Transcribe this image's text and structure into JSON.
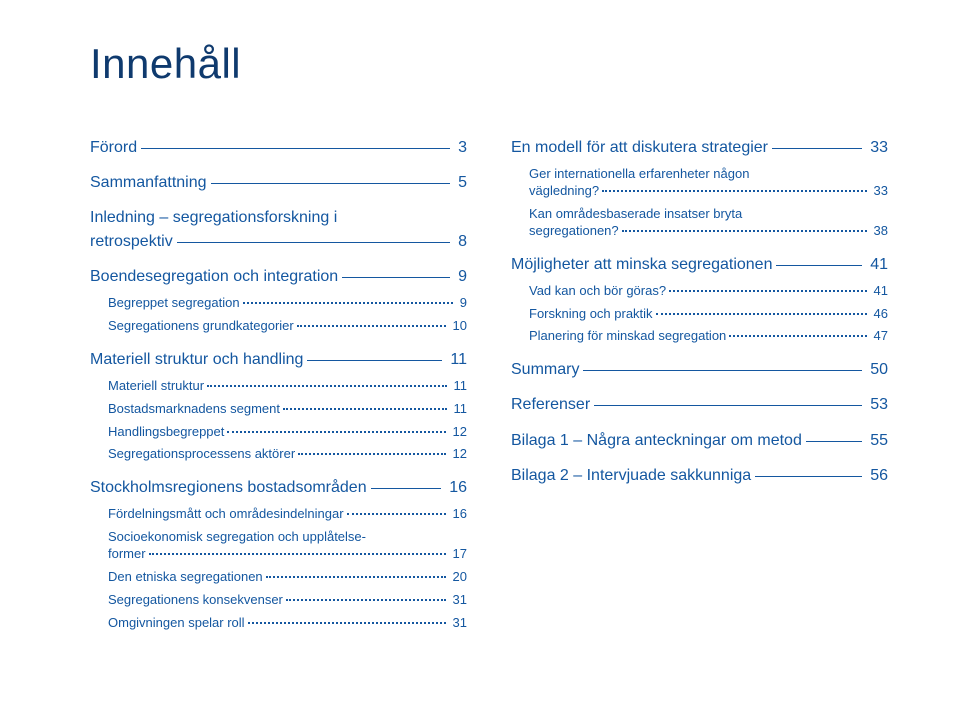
{
  "colors": {
    "heading": "#0f3a6e",
    "entry": "#1457a0",
    "background": "#ffffff"
  },
  "title": "Innehåll",
  "left": {
    "e0": {
      "label": "Förord",
      "page": "3"
    },
    "e1": {
      "label": "Sammanfattning",
      "page": "5"
    },
    "e2a": {
      "label": "Inledning – segregationsforskning i"
    },
    "e2b": {
      "label": "retrospektiv",
      "page": "8"
    },
    "e3": {
      "label": "Boendesegregation och integration",
      "page": "9"
    },
    "e3a": {
      "label": "Begreppet segregation",
      "page": "9"
    },
    "e3b": {
      "label": "Segregationens grundkategorier",
      "page": "10"
    },
    "e4": {
      "label": "Materiell struktur och handling",
      "page": "11"
    },
    "e4a": {
      "label": "Materiell struktur",
      "page": "11"
    },
    "e4b": {
      "label": "Bostadsmarknadens segment",
      "page": "11"
    },
    "e4c": {
      "label": "Handlingsbegreppet",
      "page": "12"
    },
    "e4d": {
      "label": "Segregationsprocessens aktörer",
      "page": "12"
    },
    "e5": {
      "label": "Stockholmsregionens bostadsområden",
      "page": "16"
    },
    "e5a": {
      "label": "Fördelningsmått och områdesindelningar",
      "page": "16"
    },
    "e5b1": {
      "label": "Socioekonomisk segregation och upplåtelse-"
    },
    "e5b2": {
      "label": "former",
      "page": "17"
    },
    "e5c": {
      "label": "Den etniska segregationen",
      "page": "20"
    },
    "e5d": {
      "label": "Segregationens konsekvenser",
      "page": "31"
    },
    "e5e": {
      "label": "Omgivningen spelar roll",
      "page": "31"
    }
  },
  "right": {
    "e0": {
      "label": "En modell för att diskutera strategier",
      "page": "33"
    },
    "e0a1": {
      "label": "Ger internationella erfarenheter någon"
    },
    "e0a2": {
      "label": "vägledning?",
      "page": "33"
    },
    "e0b1": {
      "label": "Kan områdesbaserade insatser bryta"
    },
    "e0b2": {
      "label": "segregationen?",
      "page": "38"
    },
    "e1": {
      "label": "Möjligheter att minska segregationen",
      "page": "41"
    },
    "e1a": {
      "label": "Vad kan och bör göras?",
      "page": "41"
    },
    "e1b": {
      "label": "Forskning och praktik",
      "page": "46"
    },
    "e1c": {
      "label": "Planering för minskad segregation",
      "page": "47"
    },
    "e2": {
      "label": "Summary",
      "page": "50"
    },
    "e3": {
      "label": "Referenser",
      "page": "53"
    },
    "e4": {
      "label": "Bilaga 1 – Några anteckningar om metod",
      "page": "55"
    },
    "e5": {
      "label": "Bilaga 2 – Intervjuade sakkunniga",
      "page": "56"
    }
  }
}
